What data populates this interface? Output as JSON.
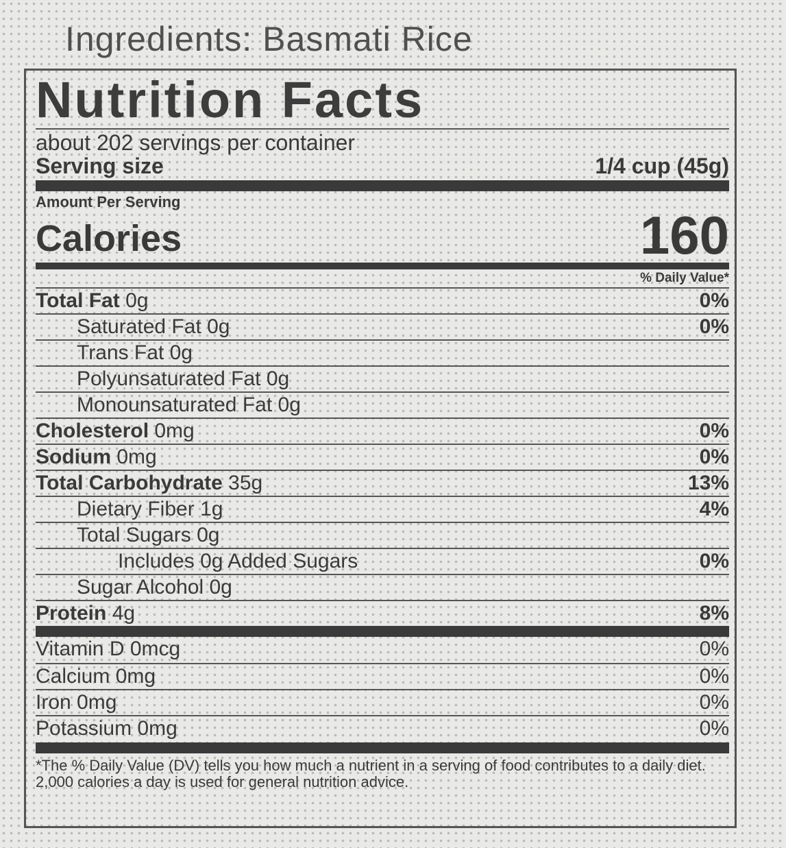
{
  "ingredients": "Ingredients: Basmati Rice",
  "title": "Nutrition Facts",
  "servings_per_container": "about 202 servings per container",
  "serving_size_label": "Serving size",
  "serving_size_value": "1/4 cup (45g)",
  "amount_per_serving": "Amount Per Serving",
  "calories_label": "Calories",
  "calories_value": "160",
  "dv_header": "% Daily Value*",
  "nutrients": [
    {
      "name": "Total Fat",
      "amount": "0g",
      "dv": "0%",
      "bold": true,
      "indent": 0
    },
    {
      "name": "Saturated Fat",
      "amount": "0g",
      "dv": "0%",
      "bold": false,
      "indent": 1
    },
    {
      "name": "Trans Fat",
      "amount": "0g",
      "dv": "",
      "bold": false,
      "indent": 1
    },
    {
      "name": "Polyunsaturated Fat",
      "amount": "0g",
      "dv": "",
      "bold": false,
      "indent": 1
    },
    {
      "name": "Monounsaturated Fat",
      "amount": "0g",
      "dv": "",
      "bold": false,
      "indent": 1
    },
    {
      "name": "Cholesterol",
      "amount": "0mg",
      "dv": "0%",
      "bold": true,
      "indent": 0
    },
    {
      "name": "Sodium",
      "amount": "0mg",
      "dv": "0%",
      "bold": true,
      "indent": 0
    },
    {
      "name": "Total Carbohydrate",
      "amount": "35g",
      "dv": "13%",
      "bold": true,
      "indent": 0
    },
    {
      "name": "Dietary Fiber",
      "amount": "1g",
      "dv": "4%",
      "bold": false,
      "indent": 1
    },
    {
      "name": "Total Sugars",
      "amount": "0g",
      "dv": "",
      "bold": false,
      "indent": 1
    },
    {
      "name": "Includes 0g Added Sugars",
      "amount": "",
      "dv": "0%",
      "bold": false,
      "indent": 2
    },
    {
      "name": "Sugar Alcohol",
      "amount": "0g",
      "dv": "",
      "bold": false,
      "indent": 1
    },
    {
      "name": "Protein",
      "amount": "4g",
      "dv": "8%",
      "bold": true,
      "indent": 0
    }
  ],
  "vitamins": [
    {
      "name": "Vitamin D 0mcg",
      "dv": "0%"
    },
    {
      "name": "Calcium 0mg",
      "dv": "0%"
    },
    {
      "name": "Iron 0mg",
      "dv": "0%"
    },
    {
      "name": "Potassium 0mg",
      "dv": "0%"
    }
  ],
  "footnote": "*The % Daily Value (DV) tells you how much a nutrient in a serving of food contributes to a daily diet. 2,000 calories a day is used for general nutrition advice."
}
